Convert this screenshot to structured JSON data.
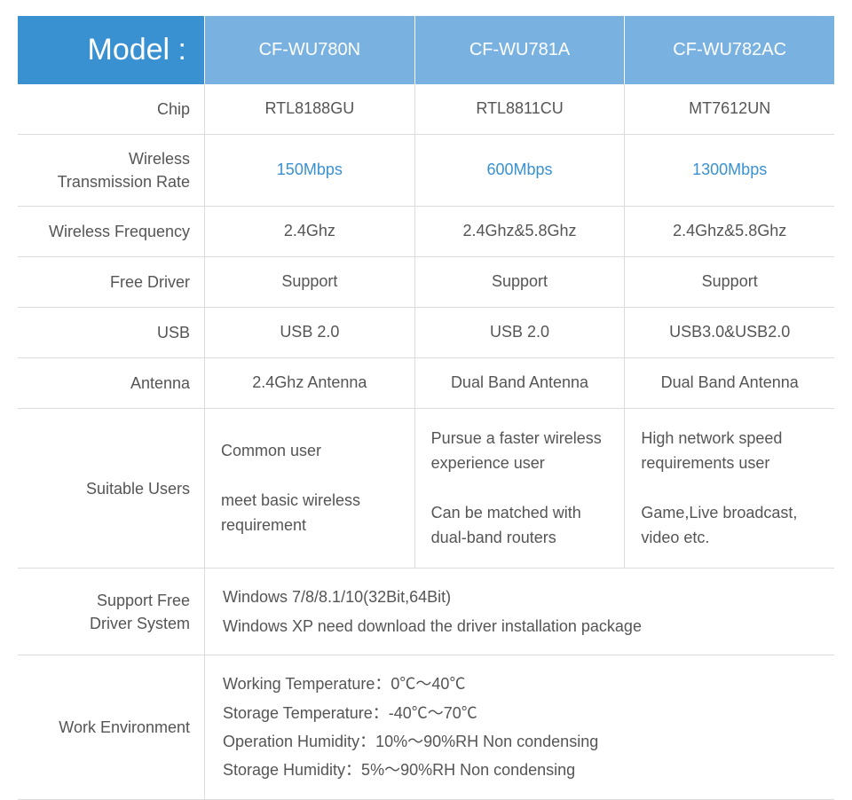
{
  "colors": {
    "header_bg_left": "#3991d2",
    "header_bg_right": "#79b2e0",
    "border": "#dcdcdc",
    "text": "#555555",
    "highlight": "#3991d2"
  },
  "header": {
    "label": "Model :",
    "models": [
      "CF-WU780N",
      "CF-WU781A",
      "CF-WU782AC"
    ]
  },
  "rows": [
    {
      "label": "Chip",
      "vals": [
        "RTL8188GU",
        "RTL8811CU",
        "MT7612UN"
      ]
    },
    {
      "label": "Wireless\nTransmission Rate",
      "vals": [
        "150Mbps",
        "600Mbps",
        "1300Mbps"
      ],
      "highlight": true
    },
    {
      "label": "Wireless Frequency",
      "vals": [
        "2.4Ghz",
        "2.4Ghz&5.8Ghz",
        "2.4Ghz&5.8Ghz"
      ]
    },
    {
      "label": "Free Driver",
      "vals": [
        "Support",
        "Support",
        "Support"
      ]
    },
    {
      "label": "USB",
      "vals": [
        "USB 2.0",
        "USB 2.0",
        "USB3.0&USB2.0"
      ]
    },
    {
      "label": "Antenna",
      "vals": [
        "2.4Ghz Antenna",
        "Dual Band Antenna",
        "Dual Band Antenna"
      ]
    }
  ],
  "suitable_users": {
    "label": "Suitable Users",
    "vals": [
      "Common user\n\nmeet basic wireless requirement",
      "Pursue a faster wireless experience user\n\nCan be matched with dual-band routers",
      "High network speed requirements user\n\nGame,Live broadcast, video etc."
    ]
  },
  "merged_rows": [
    {
      "label": "Support Free\nDriver System",
      "text": "Windows 7/8/8.1/10(32Bit,64Bit)\nWindows XP need download the driver installation package"
    },
    {
      "label": "Work Environment",
      "text": "Working Temperature：0℃～40℃\nStorage Temperature：-40℃～70℃\nOperation Humidity：10%～90%RH Non condensing\nStorage Humidity：5%～90%RH Non condensing"
    }
  ]
}
